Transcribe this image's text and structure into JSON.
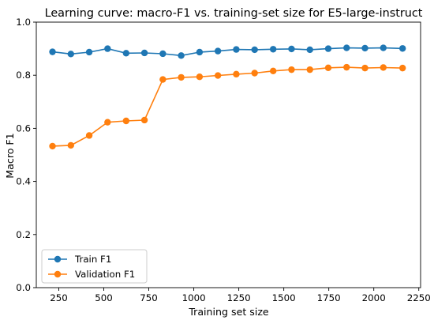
{
  "chart_data": {
    "type": "line",
    "title": "Learning curve: macro-F1 vs. training-set size for E5-large-instruct",
    "xlabel": "Training set size",
    "ylabel": "Macro F1",
    "xlim": [
      125,
      2260
    ],
    "ylim": [
      0.0,
      1.0
    ],
    "xticks": [
      250,
      500,
      750,
      1000,
      1250,
      1500,
      1750,
      2000,
      2250
    ],
    "yticks": [
      0.0,
      0.2,
      0.4,
      0.6,
      0.8,
      1.0
    ],
    "ytick_labels": [
      "0.0",
      "0.2",
      "0.4",
      "0.6",
      "0.8",
      "1.0"
    ],
    "grid": false,
    "legend_position": "lower-left",
    "x": [
      215,
      317,
      419,
      521,
      624,
      726,
      828,
      930,
      1032,
      1134,
      1236,
      1338,
      1441,
      1543,
      1645,
      1747,
      1849,
      1951,
      2053,
      2160
    ],
    "series": [
      {
        "name": "Train F1",
        "color": "#1f77b4",
        "values": [
          0.888,
          0.88,
          0.887,
          0.9,
          0.883,
          0.884,
          0.881,
          0.874,
          0.887,
          0.891,
          0.897,
          0.896,
          0.898,
          0.899,
          0.896,
          0.9,
          0.903,
          0.902,
          0.903,
          0.901
        ]
      },
      {
        "name": "Validation F1",
        "color": "#ff7f0e",
        "values": [
          0.533,
          0.536,
          0.573,
          0.623,
          0.628,
          0.631,
          0.784,
          0.792,
          0.794,
          0.799,
          0.804,
          0.808,
          0.816,
          0.821,
          0.821,
          0.828,
          0.83,
          0.827,
          0.829,
          0.827
        ]
      }
    ]
  }
}
